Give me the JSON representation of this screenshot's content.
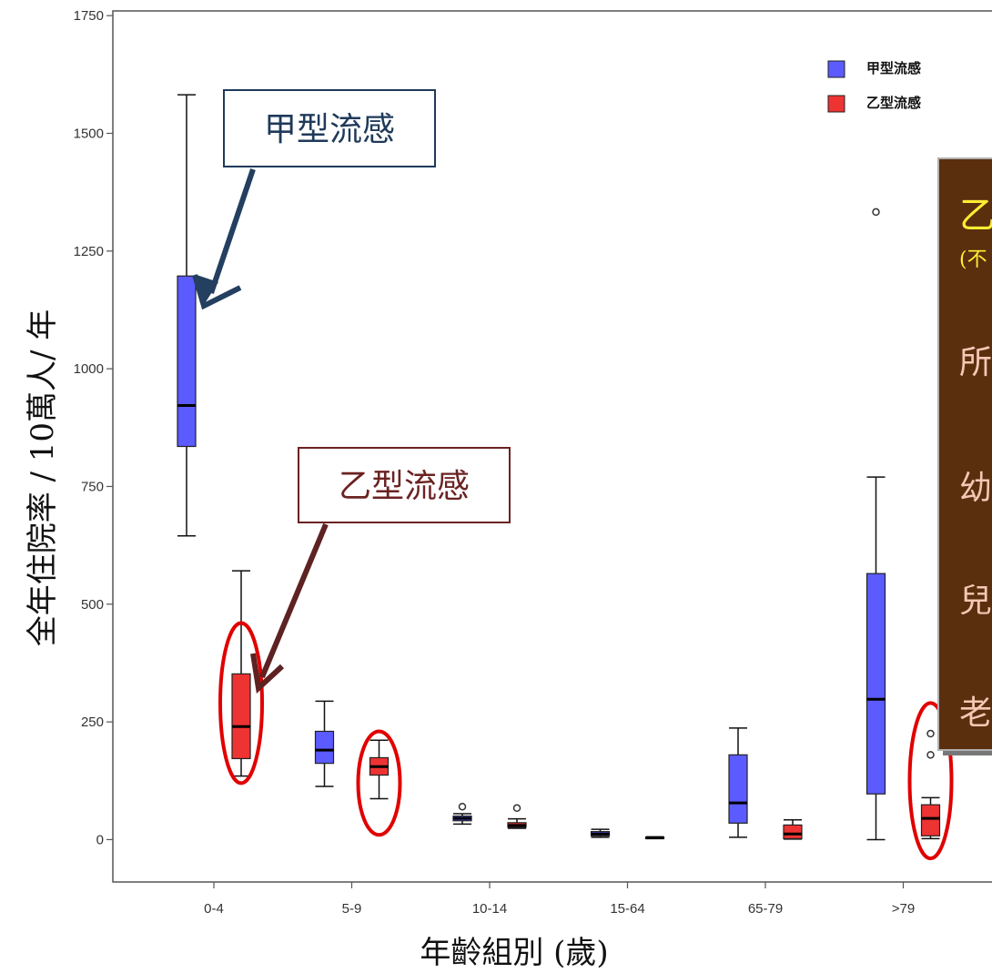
{
  "chart_data": {
    "type": "boxplot",
    "title": "",
    "xlabel": "年齡組別 (歲)",
    "ylabel": "全年住院率 / 10萬人/ 年",
    "ylim": [
      -90,
      1760
    ],
    "yticks": [
      0,
      250,
      500,
      750,
      1000,
      1250,
      1500,
      1750
    ],
    "ytick_labels": [
      "0",
      "250",
      "500",
      "750",
      "1000",
      "1250",
      "1500",
      "1750"
    ],
    "categories": [
      "0-4",
      "5-9",
      "10-14",
      "15-64",
      "65-79",
      ">79"
    ],
    "legend_position": "top-right",
    "grid": false,
    "series": [
      {
        "name": "甲型流感",
        "color": "#5b5bff",
        "boxes": [
          {
            "min": 645,
            "q1": 835,
            "median": 922,
            "q3": 1197,
            "max": 1582,
            "outliers": []
          },
          {
            "min": 113,
            "q1": 162,
            "median": 190,
            "q3": 230,
            "max": 294,
            "outliers": []
          },
          {
            "min": 33,
            "q1": 40,
            "median": 45,
            "q3": 50,
            "max": 55,
            "outliers": [
              70
            ]
          },
          {
            "min": 5,
            "q1": 8,
            "median": 12,
            "q3": 17,
            "max": 22,
            "outliers": []
          },
          {
            "min": 5,
            "q1": 35,
            "median": 78,
            "q3": 180,
            "max": 237,
            "outliers": []
          },
          {
            "min": 0,
            "q1": 97,
            "median": 298,
            "q3": 565,
            "max": 770,
            "outliers": [
              1333
            ]
          }
        ]
      },
      {
        "name": "乙型流感",
        "color": "#ee3333",
        "boxes": [
          {
            "min": 135,
            "q1": 172,
            "median": 240,
            "q3": 352,
            "max": 571,
            "outliers": []
          },
          {
            "min": 87,
            "q1": 137,
            "median": 155,
            "q3": 174,
            "max": 211,
            "outliers": []
          },
          {
            "min": 24,
            "q1": 26,
            "median": 30,
            "q3": 36,
            "max": 44,
            "outliers": [
              67
            ]
          },
          {
            "min": 2,
            "q1": 3,
            "median": 4,
            "q3": 5,
            "max": 6,
            "outliers": []
          },
          {
            "min": 1,
            "q1": 2,
            "median": 12,
            "q3": 31,
            "max": 42,
            "outliers": []
          },
          {
            "min": 2,
            "q1": 8,
            "median": 45,
            "q3": 74,
            "max": 89,
            "outliers": [
              180,
              225
            ]
          }
        ]
      }
    ]
  },
  "annotations": {
    "callout_a": "甲型流感",
    "callout_b": "乙型流感",
    "panel_title": "乙",
    "panel_sub": "(不",
    "panel_lines": [
      "所",
      "幼",
      "兒",
      "老"
    ]
  },
  "colors": {
    "callout_a_border": "#1f3a5a",
    "callout_a_text": "#1f3a5a",
    "callout_b_border": "#6b2222",
    "callout_b_text": "#6b2222",
    "panel_bg": "#5a2f0e",
    "highlight": "#e00000"
  }
}
